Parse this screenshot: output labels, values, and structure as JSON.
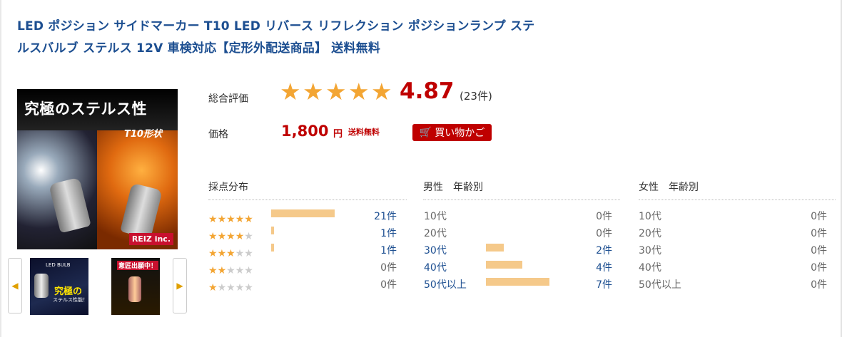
{
  "product": {
    "title_line1": "LED ポジション サイドマーカー T10 LED リバース リフレクション ポジションランプ ステ",
    "title_line2": "ルスバルブ ステルス 12V 車検対応【定形外配送商品】 送料無料"
  },
  "image": {
    "headline": "究極のステルス性",
    "sub": "T10形状",
    "logo": "REIZ inc.",
    "thumb1_title": "LED BULB",
    "thumb1_big": "究極の",
    "thumb1_sub": "ステルス性能！",
    "thumb2_title": "意匠出願中！"
  },
  "rating": {
    "label": "総合評価",
    "score": "4.87",
    "score_value": 4.87,
    "count": "(23件)",
    "star_color": "#f3a533",
    "star_empty_color": "#cccccc"
  },
  "price": {
    "label": "価格",
    "amount": "1,800",
    "unit": "円",
    "shipping": "送料無料",
    "cart_label": "買い物かご",
    "color": "#bf0000"
  },
  "distribution": {
    "header": "採点分布",
    "rows": [
      {
        "stars": 5,
        "count": "21件",
        "value": 21
      },
      {
        "stars": 4,
        "count": "1件",
        "value": 1
      },
      {
        "stars": 3,
        "count": "1件",
        "value": 1
      },
      {
        "stars": 2,
        "count": "0件",
        "value": 0
      },
      {
        "stars": 1,
        "count": "0件",
        "value": 0
      }
    ]
  },
  "male": {
    "header": "男性　年齢別",
    "rows": [
      {
        "age": "10代",
        "count": "0件",
        "value": 0
      },
      {
        "age": "20代",
        "count": "0件",
        "value": 0
      },
      {
        "age": "30代",
        "count": "2件",
        "value": 2
      },
      {
        "age": "40代",
        "count": "4件",
        "value": 4
      },
      {
        "age": "50代以上",
        "count": "7件",
        "value": 7
      }
    ]
  },
  "female": {
    "header": "女性　年齢別",
    "rows": [
      {
        "age": "10代",
        "count": "0件",
        "value": 0
      },
      {
        "age": "20代",
        "count": "0件",
        "value": 0
      },
      {
        "age": "30代",
        "count": "0件",
        "value": 0
      },
      {
        "age": "40代",
        "count": "0件",
        "value": 0
      },
      {
        "age": "50代以上",
        "count": "0件",
        "value": 0
      }
    ]
  },
  "colors": {
    "bar": "#f5c98a",
    "link": "#1d4f91"
  }
}
